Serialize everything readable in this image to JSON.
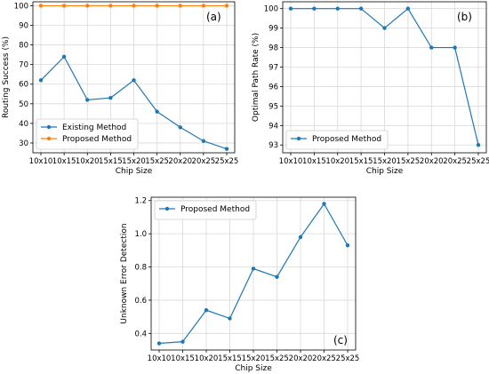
{
  "colors": {
    "existing": "#1f77b4",
    "proposed": "#ff7f0e",
    "grid": "#d9d9d9",
    "axis": "#000000"
  },
  "chart_data": [
    {
      "type": "line",
      "panel_label": "(a)",
      "xlabel": "Chip Size",
      "ylabel": "Routing Success (%)",
      "categories": [
        "10x10",
        "10x15",
        "10x20",
        "15x15",
        "15x20",
        "15x25",
        "20x20",
        "20x25",
        "25x25"
      ],
      "ylim": [
        25,
        102
      ],
      "yticks": [
        30,
        40,
        50,
        60,
        70,
        80,
        90,
        100
      ],
      "grid": true,
      "legend_position": "lower-left",
      "series": [
        {
          "name": "Existing Method",
          "color": "#1f77b4",
          "values": [
            62,
            74,
            52,
            53,
            62,
            46,
            38,
            31,
            27
          ]
        },
        {
          "name": "Proposed Method",
          "color": "#ff7f0e",
          "values": [
            100,
            100,
            100,
            100,
            100,
            100,
            100,
            100,
            100
          ]
        }
      ]
    },
    {
      "type": "line",
      "panel_label": "(b)",
      "xlabel": "Chip Size",
      "ylabel": "Optimal Path Rate (%)",
      "categories": [
        "10x10",
        "10x15",
        "10x20",
        "15x15",
        "15x20",
        "15x25",
        "20x20",
        "20x25",
        "25x25"
      ],
      "ylim": [
        92.6,
        100.35
      ],
      "yticks": [
        93,
        94,
        95,
        96,
        97,
        98,
        99,
        100
      ],
      "grid": true,
      "legend_position": "lower-left",
      "series": [
        {
          "name": "Proposed Method",
          "color": "#1f77b4",
          "values": [
            100,
            100,
            100,
            100,
            99,
            100,
            98,
            98,
            93
          ]
        }
      ]
    },
    {
      "type": "line",
      "panel_label": "(c)",
      "xlabel": "Chip Size",
      "ylabel": "Unknown Error Detection",
      "categories": [
        "10x10",
        "10x15",
        "10x20",
        "15x15",
        "15x20",
        "15x25",
        "20x20",
        "20x25",
        "25x25"
      ],
      "ylim": [
        0.3,
        1.22
      ],
      "yticks": [
        0.4,
        0.6,
        0.8,
        1.0,
        1.2
      ],
      "grid": true,
      "legend_position": "upper-left",
      "series": [
        {
          "name": "Proposed Method",
          "color": "#1f77b4",
          "values": [
            0.34,
            0.35,
            0.54,
            0.49,
            0.79,
            0.74,
            0.98,
            1.18,
            0.93
          ]
        }
      ]
    }
  ]
}
